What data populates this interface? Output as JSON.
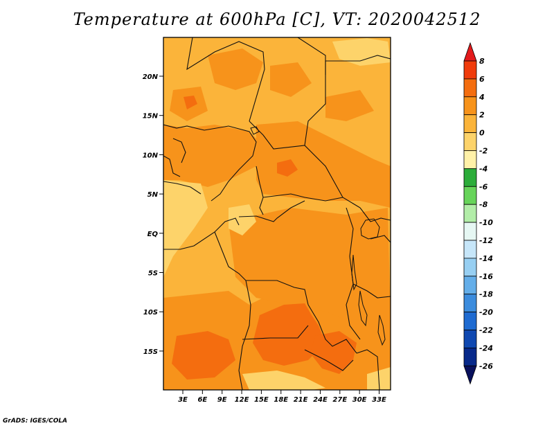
{
  "title": "Temperature at 600hPa [C], VT: 2020042512",
  "credit": "GrADS: IGES/COLA",
  "lat_labels": [
    "20N",
    "15N",
    "10N",
    "5N",
    "EQ",
    "5S",
    "10S",
    "15S"
  ],
  "lon_labels": [
    "3E",
    "6E",
    "9E",
    "12E",
    "15E",
    "18E",
    "21E",
    "24E",
    "27E",
    "30E",
    "33E"
  ],
  "colorbar": {
    "labels": [
      "8",
      "6",
      "4",
      "2",
      "0",
      "-2",
      "-4",
      "-6",
      "-8",
      "-10",
      "-12",
      "-14",
      "-16",
      "-18",
      "-20",
      "-22",
      "-24",
      "-26"
    ],
    "colors": [
      "#e31a1c",
      "#f03b0b",
      "#f46d0f",
      "#f7931b",
      "#fbb43a",
      "#fdd36a",
      "#fff1a8",
      "#2cad3a",
      "#67d45a",
      "#b2eda8",
      "#e6f7f3",
      "#c6e6f9",
      "#97cff2",
      "#64aee9",
      "#3c8cdd",
      "#1f6bd1",
      "#0f48b1",
      "#07298a",
      "#08105c"
    ]
  },
  "map": {
    "colors": {
      "base": "#fbb43a",
      "warm": "#f7931b",
      "hot": "#f46d0f",
      "cool": "#fdd36a",
      "border": "#111111"
    }
  }
}
